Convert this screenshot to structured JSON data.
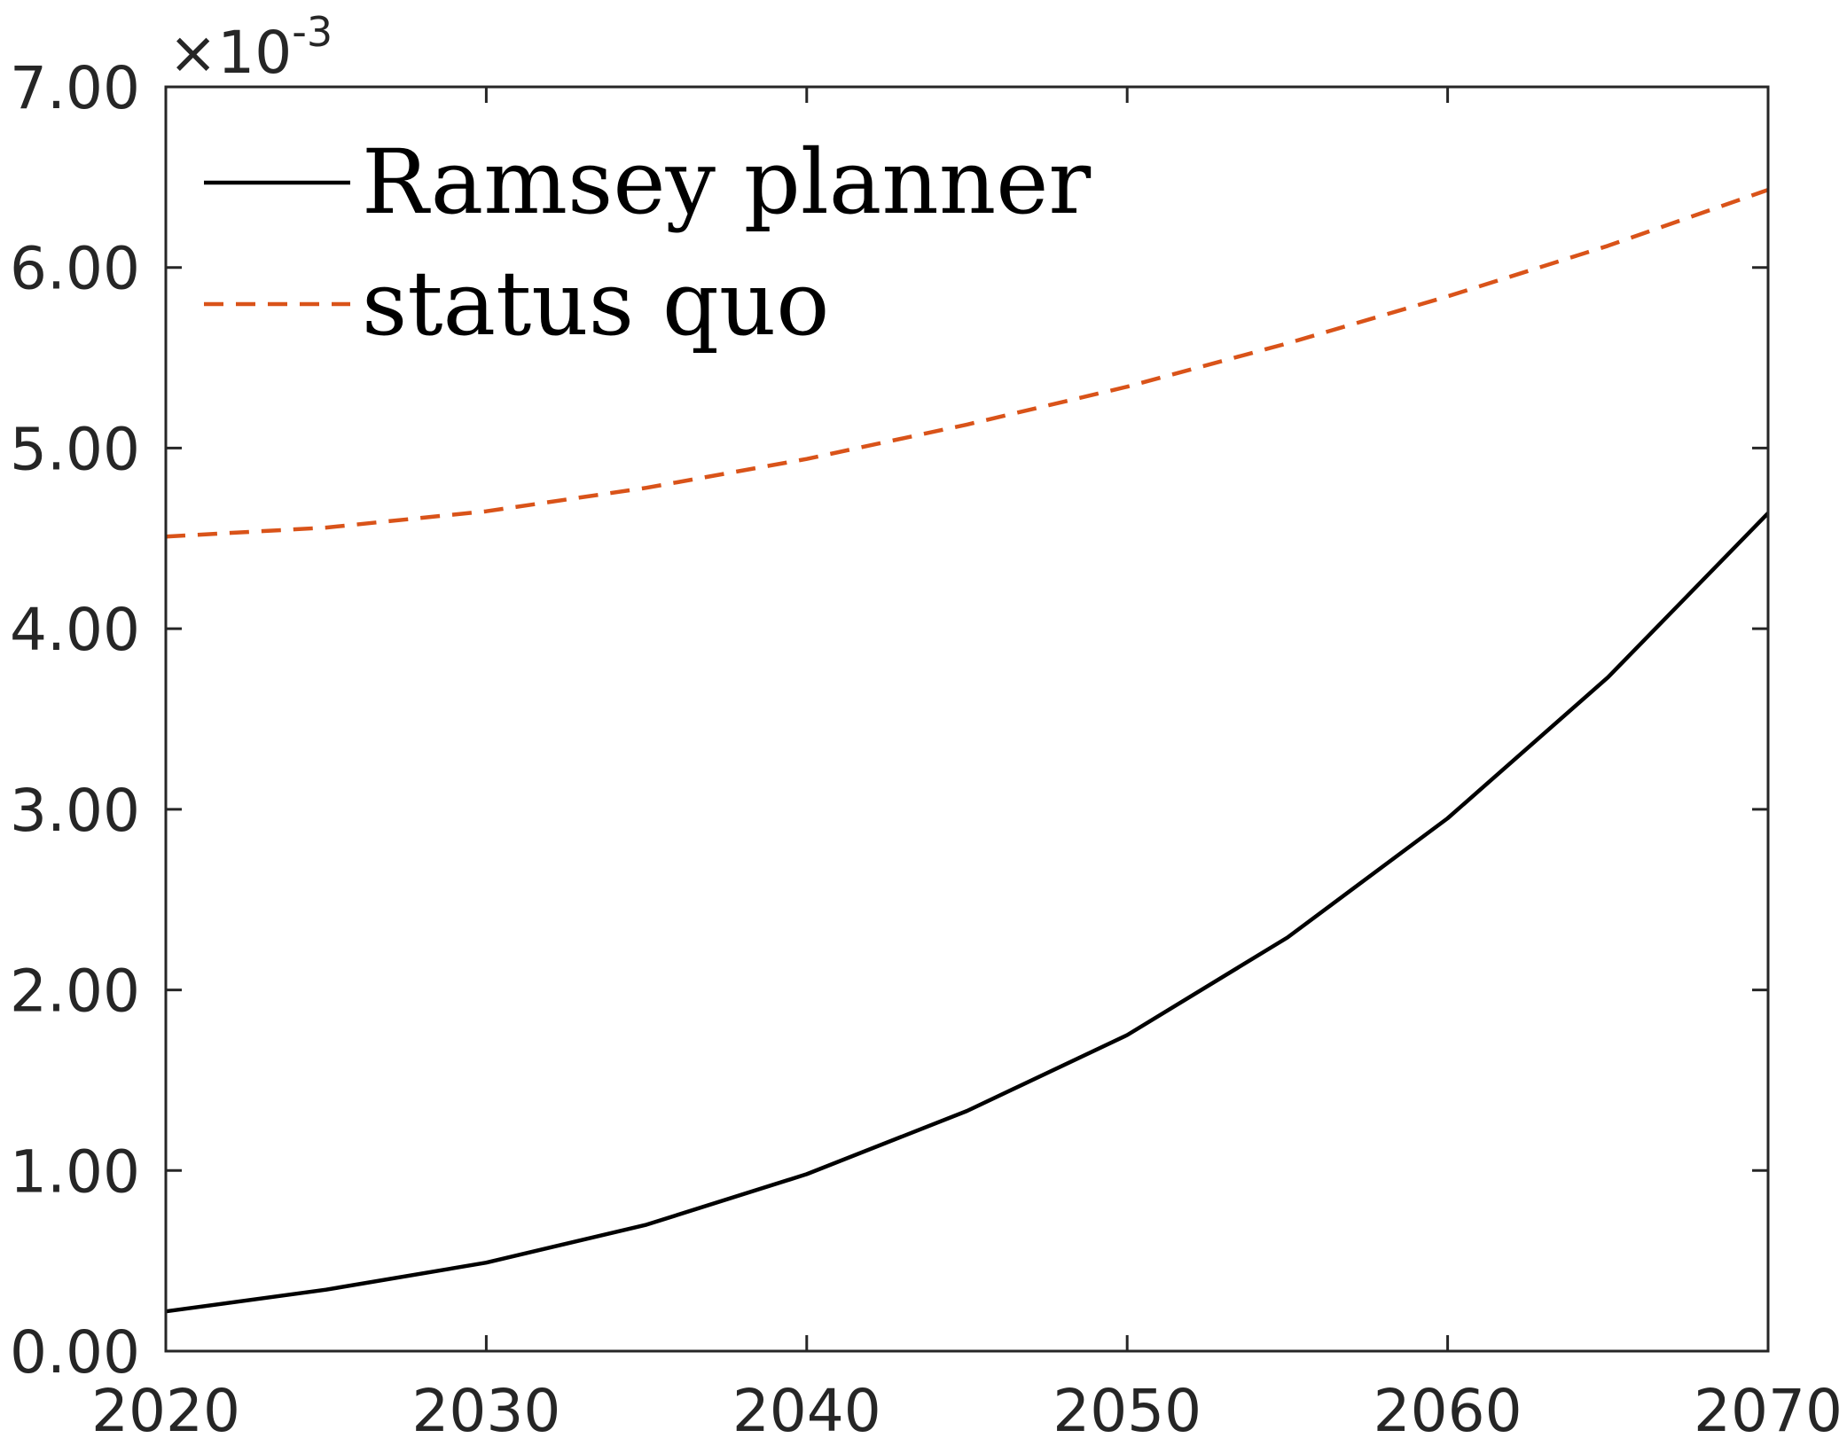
{
  "chart_data": {
    "type": "line",
    "title": "",
    "xlabel": "",
    "ylabel": "",
    "xlim": [
      2020,
      2070
    ],
    "ylim": [
      0,
      7
    ],
    "y_multiplier_label": "×10",
    "y_multiplier_exponent": "-3",
    "xticks": [
      2020,
      2030,
      2040,
      2050,
      2060,
      2070
    ],
    "xtick_labels": [
      "2020",
      "2030",
      "2040",
      "2050",
      "2060",
      "2070"
    ],
    "yticks": [
      0,
      1,
      2,
      3,
      4,
      5,
      6,
      7
    ],
    "ytick_labels": [
      "0.00",
      "1.00",
      "2.00",
      "3.00",
      "4.00",
      "5.00",
      "6.00",
      "7.00"
    ],
    "grid": false,
    "legend_position": "top-left",
    "series": [
      {
        "name": "Ramsey planner",
        "color": "#000000",
        "style": "solid",
        "x": [
          2020,
          2025,
          2030,
          2035,
          2040,
          2045,
          2050,
          2055,
          2060,
          2065,
          2070
        ],
        "y": [
          0.22,
          0.34,
          0.49,
          0.7,
          0.98,
          1.33,
          1.75,
          2.29,
          2.95,
          3.73,
          4.64
        ]
      },
      {
        "name": "status quo",
        "color": "#D95319",
        "style": "dashed",
        "x": [
          2020,
          2025,
          2030,
          2035,
          2040,
          2045,
          2050,
          2055,
          2060,
          2065,
          2070
        ],
        "y": [
          4.51,
          4.56,
          4.65,
          4.78,
          4.94,
          5.13,
          5.34,
          5.58,
          5.84,
          6.12,
          6.43
        ]
      }
    ]
  }
}
